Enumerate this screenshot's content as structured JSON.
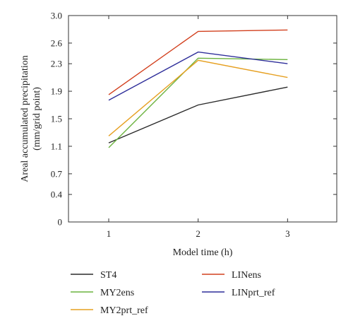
{
  "chart_data": {
    "type": "line",
    "xlabel": "Model time (h)",
    "ylabel": "Areal accumulated precipitation (mm/grid point)",
    "ylabel_lines": [
      "Areal accumulated precipitation",
      "(mm/grid point)"
    ],
    "x": [
      1,
      2,
      3
    ],
    "x_ticks": [
      "1",
      "2",
      "3"
    ],
    "xlim": [
      0.55,
      3.55
    ],
    "ylim": [
      0,
      3.0
    ],
    "y_ticks": [
      0,
      0.4,
      0.7,
      1.1,
      1.5,
      1.9,
      2.3,
      2.6,
      3.0
    ],
    "y_tick_labels": [
      "0",
      "0.4",
      "0.7",
      "1.1",
      "1.5",
      "1.9",
      "2.3",
      "2.6",
      "3.0"
    ],
    "grid": false,
    "legend_position": "bottom",
    "series": [
      {
        "name": "ST4",
        "color": "#2b2b2b",
        "values": [
          1.15,
          1.7,
          1.96
        ]
      },
      {
        "name": "LINens",
        "color": "#d2401e",
        "values": [
          1.85,
          2.77,
          2.79
        ]
      },
      {
        "name": "MY2ens",
        "color": "#6cb33f",
        "values": [
          1.08,
          2.38,
          2.36
        ]
      },
      {
        "name": "LINprt_ref",
        "color": "#2e2e9a",
        "values": [
          1.77,
          2.47,
          2.3
        ]
      },
      {
        "name": "MY2prt_ref",
        "color": "#e6a021",
        "values": [
          1.25,
          2.35,
          2.1
        ]
      }
    ]
  }
}
